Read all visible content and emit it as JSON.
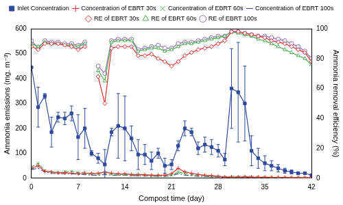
{
  "chart_data": {
    "type": "line",
    "x": [
      0,
      1,
      2,
      3,
      4,
      5,
      6,
      7,
      8,
      9,
      10,
      11,
      12,
      13,
      14,
      15,
      16,
      17,
      18,
      19,
      20,
      21,
      22,
      23,
      24,
      25,
      26,
      27,
      28,
      29,
      30,
      31,
      32,
      33,
      34,
      35,
      36,
      37,
      38,
      39,
      40,
      41,
      42
    ],
    "x_label": "Compost time (day)",
    "y_label": "Ammonia emissions (mg. m⁻³)",
    "y2_label": "Ammonia removal efficiency (%)",
    "xlim": [
      0,
      42
    ],
    "xticks": [
      0,
      7,
      14,
      21,
      28,
      35,
      42
    ],
    "ylim": [
      0,
      600
    ],
    "yticks": [
      0,
      100,
      200,
      300,
      400,
      500,
      600
    ],
    "y2lim": [
      0,
      100
    ],
    "y2ticks": [
      0,
      20,
      40,
      60,
      80,
      100
    ],
    "grid": false,
    "legend": "top",
    "series": [
      {
        "name": "Inlet Concentration",
        "color": "#2e4a9e",
        "marker": "square",
        "line_style": "solid",
        "values": [
          445,
          285,
          330,
          185,
          245,
          240,
          260,
          165,
          200,
          100,
          80,
          55,
          185,
          210,
          200,
          160,
          95,
          95,
          70,
          100,
          50,
          55,
          130,
          200,
          185,
          120,
          135,
          125,
          110,
          75,
          360,
          345,
          300,
          110,
          80,
          60,
          50,
          40,
          30,
          25,
          20,
          20,
          12
        ],
        "error": [
          0,
          80,
          10,
          60,
          20,
          25,
          30,
          90,
          80,
          10,
          20,
          60,
          15,
          130,
          130,
          50,
          60,
          40,
          35,
          20,
          30,
          20,
          20,
          30,
          15,
          25,
          30,
          30,
          25,
          25,
          160,
          200,
          150,
          60,
          40,
          30,
          20,
          15,
          10,
          8,
          5,
          5,
          3
        ]
      },
      {
        "name": "Concentration of EBRT 30s",
        "color": "#e03030",
        "marker": "plus",
        "line_style": "solid",
        "values": [
          40,
          50,
          28,
          25,
          22,
          22,
          20,
          18,
          20,
          18,
          20,
          25,
          20,
          18,
          18,
          15,
          15,
          14,
          12,
          12,
          12,
          18,
          40,
          25,
          20,
          15,
          12,
          10,
          8,
          5,
          5,
          5,
          6,
          5,
          4,
          4,
          3,
          3,
          3,
          2,
          2,
          2,
          2
        ]
      },
      {
        "name": "Concentration of EBRT 60s",
        "color": "#4caf50",
        "marker": "x",
        "line_style": "dashed",
        "values": [
          45,
          60,
          30,
          25,
          22,
          25,
          28,
          22,
          22,
          18,
          18,
          20,
          18,
          15,
          15,
          12,
          12,
          12,
          10,
          10,
          10,
          12,
          25,
          18,
          15,
          12,
          10,
          8,
          6,
          4,
          5,
          5,
          6,
          5,
          5,
          4,
          4,
          3,
          3,
          3,
          3,
          2,
          2
        ]
      },
      {
        "name": "Concentration of EBRT 100s",
        "color": "#3b4f8a",
        "marker": "none",
        "line_style": "dashdot",
        "values": [
          35,
          40,
          25,
          20,
          18,
          18,
          18,
          15,
          15,
          12,
          12,
          15,
          12,
          12,
          12,
          10,
          10,
          10,
          8,
          8,
          8,
          10,
          18,
          12,
          10,
          8,
          7,
          6,
          5,
          3,
          3,
          4,
          4,
          3,
          3,
          3,
          3,
          2,
          2,
          2,
          2,
          2,
          1
        ]
      },
      {
        "name": "RE of EBRT 30s",
        "color": "#e03030",
        "marker": "open diamond",
        "line_style": "solid",
        "axis": "y2",
        "values": [
          88,
          86,
          90,
          90,
          90,
          89,
          88,
          86,
          88,
          null,
          68,
          50,
          87,
          88,
          88,
          88,
          82,
          82,
          83,
          80,
          78,
          75,
          78,
          82,
          84,
          86,
          87,
          88,
          90,
          92,
          98,
          98,
          97,
          96,
          95,
          94,
          92,
          91,
          90,
          88,
          86,
          84,
          78
        ]
      },
      {
        "name": "RE of EBRT 60s",
        "color": "#4caf50",
        "marker": "open triangle",
        "line_style": "solid",
        "axis": "y2",
        "values": [
          90,
          88,
          91,
          90,
          90,
          89,
          89,
          88,
          90,
          null,
          72,
          65,
          91,
          92,
          92,
          92,
          85,
          86,
          87,
          87,
          85,
          86,
          88,
          90,
          90,
          91,
          92,
          93,
          94,
          95,
          98,
          97,
          96,
          95,
          93,
          92,
          90,
          88,
          86,
          84,
          82,
          80,
          76
        ]
      },
      {
        "name": "RE of EBRT 100s",
        "color": "#8e6bb5",
        "marker": "open circle",
        "line_style": "solid",
        "axis": "y2",
        "values": [
          92,
          87,
          92,
          91,
          91,
          90,
          90,
          89,
          91,
          null,
          75,
          70,
          92,
          93,
          93,
          93,
          86,
          87,
          88,
          89,
          87,
          87,
          90,
          91,
          91,
          92,
          93,
          94,
          95,
          95,
          98,
          98,
          97,
          96,
          95,
          95,
          94,
          93,
          92,
          90,
          88,
          85,
          80
        ]
      }
    ]
  }
}
